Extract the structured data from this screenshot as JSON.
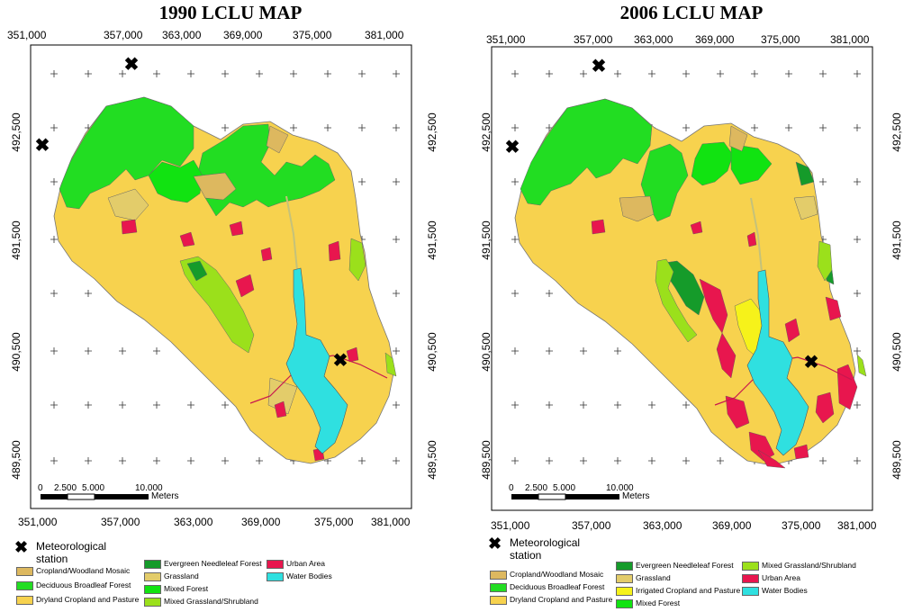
{
  "maps": [
    {
      "title": "1990 LCLU MAP",
      "x_ticks": [
        "351,000",
        "357,000",
        "363,000",
        "369,000",
        "375,000",
        "381,000"
      ],
      "y_ticks": [
        "492,500",
        "491,500",
        "490,500",
        "489,500"
      ],
      "scale": {
        "ticks": [
          "0",
          "2.500",
          "5.000",
          "10.000"
        ],
        "unit": "Meters"
      },
      "station_label": "Meteorological station",
      "legend": [
        {
          "label": "Cropland/Woodland Mosaic",
          "color": "#DDB85F"
        },
        {
          "label": "Deciduous Broadleaf Forest",
          "color": "#22DD22"
        },
        {
          "label": "Dryland Cropland and Pasture",
          "color": "#F7D24E"
        },
        {
          "label": "Evergreen Needleleaf Forest",
          "color": "#159B2A"
        },
        {
          "label": "Grassland",
          "color": "#E3CC6A"
        },
        {
          "label": "Mixed Forest",
          "color": "#11E311"
        },
        {
          "label": "Mixed Grassland/Shrubland",
          "color": "#9BE01B"
        },
        {
          "label": "Urban Area",
          "color": "#E8164E"
        },
        {
          "label": "Water Bodies",
          "color": "#2FE0E0"
        }
      ]
    },
    {
      "title": "2006 LCLU MAP",
      "x_ticks": [
        "351,000",
        "357,000",
        "363,000",
        "369,000",
        "375,000",
        "381,000"
      ],
      "y_ticks": [
        "492,500",
        "491,500",
        "490,500",
        "489,500"
      ],
      "scale": {
        "ticks": [
          "0",
          "2.500",
          "5.000",
          "10.000"
        ],
        "unit": "Meters"
      },
      "station_label": "Meteorological station",
      "legend": [
        {
          "label": "Cropland/Woodland Mosaic",
          "color": "#DDB85F"
        },
        {
          "label": "Deciduous Broadleaf Forest",
          "color": "#22DD22"
        },
        {
          "label": "Dryland Cropland and Pasture",
          "color": "#F7D24E"
        },
        {
          "label": "Evergreen Needleleaf Forest",
          "color": "#159B2A"
        },
        {
          "label": "Grassland",
          "color": "#E3CC6A"
        },
        {
          "label": "Irrigated Cropland and Pasture",
          "color": "#F6F21A"
        },
        {
          "label": "Mixed Forest",
          "color": "#11E311"
        },
        {
          "label": "Mixed Grassland/Shrubland",
          "color": "#9BE01B"
        },
        {
          "label": "Urban Area",
          "color": "#E8164E"
        },
        {
          "label": "Water Bodies",
          "color": "#2FE0E0"
        }
      ]
    }
  ]
}
